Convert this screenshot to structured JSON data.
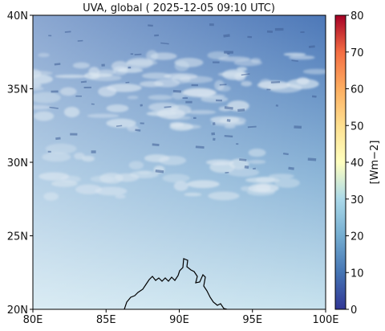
{
  "map": {
    "title": "UVA, global ( 2025-12-05 09:10 UTC)",
    "lon_range": [
      80,
      100
    ],
    "lat_range": [
      20,
      40
    ],
    "x_ticks": [
      {
        "value": 80,
        "label": "80E"
      },
      {
        "value": 85,
        "label": "85E"
      },
      {
        "value": 90,
        "label": "90E"
      },
      {
        "value": 95,
        "label": "95E"
      },
      {
        "value": 100,
        "label": "100E"
      }
    ],
    "y_ticks": [
      {
        "value": 20,
        "label": "20N"
      },
      {
        "value": 25,
        "label": "25N"
      },
      {
        "value": 30,
        "label": "30N"
      },
      {
        "value": 35,
        "label": "35N"
      },
      {
        "value": 40,
        "label": "40N"
      }
    ],
    "field_colors": {
      "south_west": "#c7e2ee",
      "south_east": "#8db6d8",
      "north_west": "#6f9ccc",
      "north_east": "#4d78b8",
      "cloud": "#dde8f1",
      "cloud_shadow": "#3f5f96",
      "coastline": "#000000"
    }
  },
  "colorbar": {
    "unit_label": "[Wm$^{-2}$]",
    "unit_display": "[Wm−2]",
    "range": [
      0,
      80
    ],
    "ticks": [
      {
        "value": 0,
        "label": "0"
      },
      {
        "value": 10,
        "label": "10"
      },
      {
        "value": 20,
        "label": "20"
      },
      {
        "value": 30,
        "label": "30"
      },
      {
        "value": 40,
        "label": "40"
      },
      {
        "value": 50,
        "label": "50"
      },
      {
        "value": 60,
        "label": "60"
      },
      {
        "value": 70,
        "label": "70"
      },
      {
        "value": 80,
        "label": "80"
      }
    ],
    "stops": [
      {
        "value": 0,
        "color": "#313695"
      },
      {
        "value": 10,
        "color": "#4575b4"
      },
      {
        "value": 20,
        "color": "#74add1"
      },
      {
        "value": 30,
        "color": "#abd9e9"
      },
      {
        "value": 40,
        "color": "#ffffbf"
      },
      {
        "value": 50,
        "color": "#fee090"
      },
      {
        "value": 60,
        "color": "#fdae61"
      },
      {
        "value": 70,
        "color": "#f46d43"
      },
      {
        "value": 80,
        "color": "#a50026"
      }
    ]
  }
}
